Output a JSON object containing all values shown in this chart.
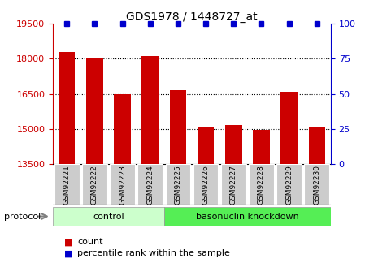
{
  "title": "GDS1978 / 1448727_at",
  "categories": [
    "GSM92221",
    "GSM92222",
    "GSM92223",
    "GSM92224",
    "GSM92225",
    "GSM92226",
    "GSM92227",
    "GSM92228",
    "GSM92229",
    "GSM92230"
  ],
  "bar_values": [
    18300,
    18050,
    16480,
    18130,
    16650,
    15050,
    15150,
    14940,
    16600,
    15100
  ],
  "percentile_values": [
    100,
    100,
    100,
    100,
    100,
    100,
    100,
    100,
    100,
    100
  ],
  "bar_color": "#cc0000",
  "dot_color": "#0000cc",
  "ylim_left": [
    13500,
    19500
  ],
  "ylim_right": [
    0,
    100
  ],
  "yticks_left": [
    13500,
    15000,
    16500,
    18000,
    19500
  ],
  "yticks_right": [
    0,
    25,
    50,
    75,
    100
  ],
  "control_n": 4,
  "knockdown_n": 6,
  "control_label": "control",
  "knockdown_label": "basonuclin knockdown",
  "protocol_label": "protocol",
  "legend_count_label": "count",
  "legend_pct_label": "percentile rank within the sample",
  "control_color": "#ccffcc",
  "knockdown_color": "#55ee55",
  "left_axis_color": "#cc0000",
  "right_axis_color": "#0000cc",
  "grid_color": "#000000",
  "tick_label_bg": "#cccccc"
}
